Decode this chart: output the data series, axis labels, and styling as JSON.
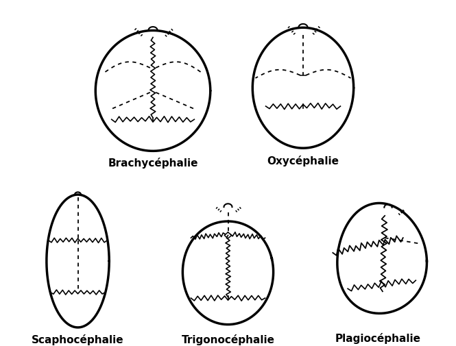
{
  "labels": [
    "Brachycéphalie",
    "Oxycéphalie",
    "Scaphocéphalie",
    "Trigonocéphalie",
    "Plagiocéphalie"
  ],
  "label_fontsize": 11,
  "bg_color": "#ffffff",
  "line_color": "#000000"
}
